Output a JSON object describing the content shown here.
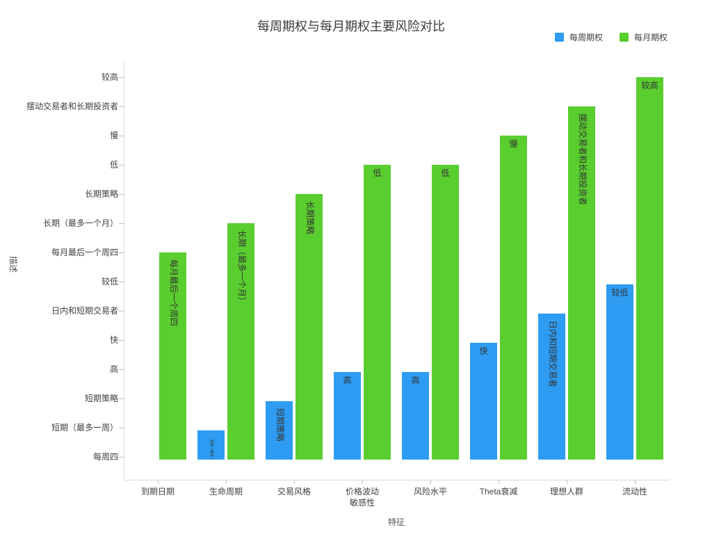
{
  "title": "每周期权与每月期权主要风险对比",
  "axes": {
    "x_title": "特征",
    "y_title": "描述"
  },
  "legend": {
    "items": [
      {
        "label": "每周期权",
        "color": "#2D9CF2"
      },
      {
        "label": "每月期权",
        "color": "#5ACD2F"
      }
    ]
  },
  "chart_data": {
    "type": "bar",
    "title": "每周期权与每月期权主要风险对比",
    "xlabel": "特征",
    "ylabel": "描述",
    "legend_position": "top-right",
    "grid": false,
    "categories": [
      "到期日期",
      "生命周期",
      "交易风格",
      "价格波动\n敏感性",
      "风险水平",
      "Theta衰减",
      "理想人群",
      "流动性"
    ],
    "y_tick_labels": [
      "每周四",
      "短期（最多一周）",
      "短期策略",
      "高",
      "快",
      "日内和短期交易者",
      "较低",
      "每月最后一个周四",
      "长期（最多一个月）",
      "长期策略",
      "低",
      "慢",
      "摆动交易者和长期投资者",
      "较高"
    ],
    "series": [
      {
        "name": "每周期权",
        "color": "#2D9CF2",
        "values": [
          "每周四",
          "短期（最多一周）",
          "短期策略",
          "高",
          "高",
          "快",
          "日内和短期交易者",
          "较低"
        ]
      },
      {
        "name": "每月期权",
        "color": "#5ACD2F",
        "values": [
          "每月最后一个周四",
          "长期（最多一个月）",
          "长期策略",
          "低",
          "低",
          "慢",
          "摆动交易者和长期投资者",
          "较高"
        ]
      }
    ],
    "value_scale_note": "bar height equals position of its category label on the y axis"
  }
}
